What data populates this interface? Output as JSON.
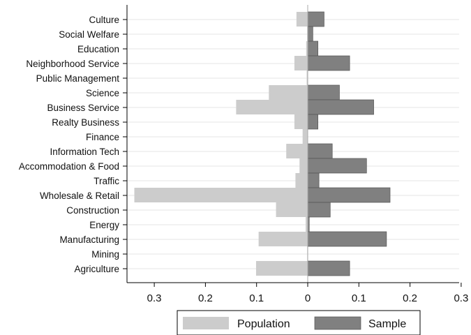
{
  "chart_data": {
    "type": "bar",
    "orientation": "horizontal",
    "layout": "mirrored",
    "categories": [
      "Culture",
      "Social Welfare",
      "Education",
      "Neighborhood Service",
      "Public Management",
      "Science",
      "Business Service",
      "Realty Business",
      "Finance",
      "Information Tech",
      "Accommodation & Food",
      "Traffic",
      "Wholesale & Retail",
      "Construction",
      "Energy",
      "Manufacturing",
      "Mining",
      "Agriculture"
    ],
    "series": [
      {
        "name": "Population",
        "color": "#cccccc",
        "side": "left",
        "values": [
          0.022,
          0.001,
          0.003,
          0.026,
          0.002,
          0.076,
          0.14,
          0.026,
          0.01,
          0.042,
          0.016,
          0.024,
          0.339,
          0.062,
          0.004,
          0.096,
          0.001,
          0.101
        ]
      },
      {
        "name": "Sample",
        "color": "#808080",
        "side": "right",
        "values": [
          0.032,
          0.01,
          0.02,
          0.082,
          0.0,
          0.062,
          0.129,
          0.02,
          0.0,
          0.048,
          0.115,
          0.022,
          0.161,
          0.044,
          0.003,
          0.154,
          0.0,
          0.082
        ]
      }
    ],
    "x_ticks": [
      {
        "value": -0.3,
        "label": "0.3"
      },
      {
        "value": -0.2,
        "label": "0.2"
      },
      {
        "value": -0.1,
        "label": "0.1"
      },
      {
        "value": 0,
        "label": "0"
      },
      {
        "value": 0.1,
        "label": "0.1"
      },
      {
        "value": 0.2,
        "label": "0.2"
      },
      {
        "value": 0.3,
        "label": "0.3"
      }
    ],
    "xlim": [
      -0.355,
      0.3
    ],
    "grid": "horizontal",
    "legend": "bottom",
    "title": "",
    "xlabel": "",
    "ylabel": ""
  }
}
